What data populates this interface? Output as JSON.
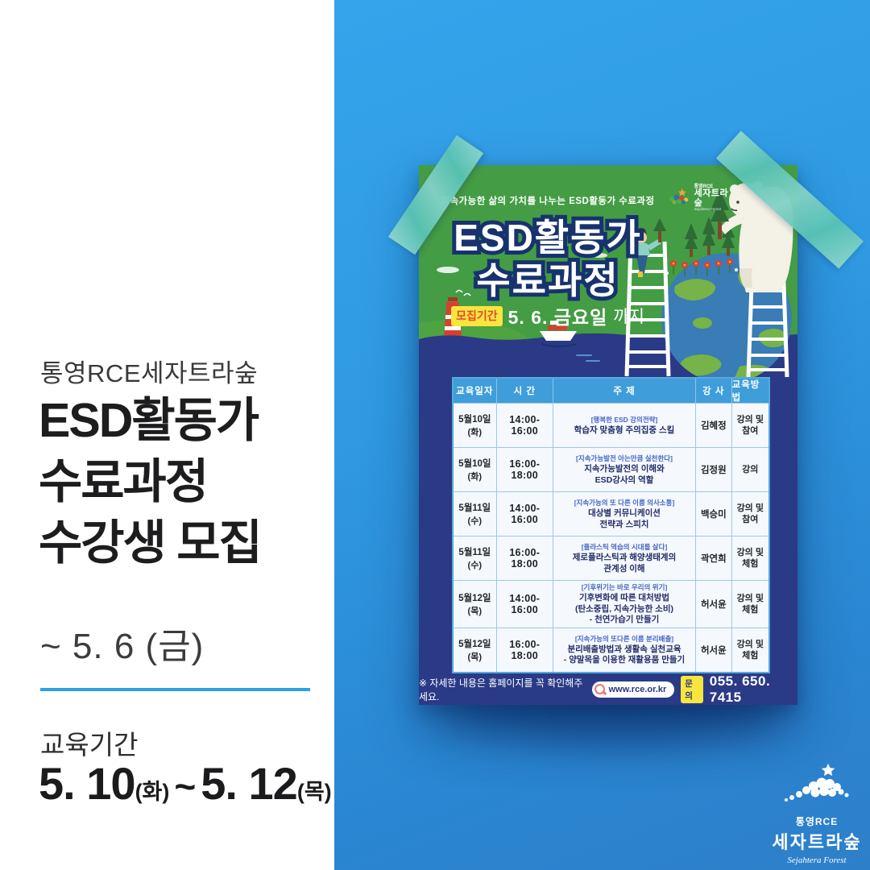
{
  "left_panel": {
    "org": "통영RCE세자트라숲",
    "title_lines": [
      "ESD활동가",
      "수료과정",
      "수강생 모집"
    ],
    "deadline": "~ 5. 6 (금)",
    "period_label": "교육기간",
    "period": {
      "start": "5. 10",
      "start_day": "(화)",
      "tilde": "~",
      "end": "5. 12",
      "end_day": "(목)"
    }
  },
  "poster": {
    "mini_logo": {
      "top": "통영RCE",
      "name": "세자트라숲",
      "sub": "Sejahtera Forest"
    },
    "subtitle": "지속가능한 삶의 가치를 나누는 ESD활동가 수료과정",
    "title_line1": "ESD활동가",
    "title_line2": "수료과정",
    "recruit_badge": "모집기간",
    "recruit_period": "5. 6. 금요일",
    "recruit_suffix": "까지",
    "table": {
      "headers": [
        "교육일자",
        "시 간",
        "주 제",
        "강 사",
        "교육방법"
      ],
      "rows": [
        {
          "date": "5월10일",
          "day": "(화)",
          "time": "14:00-16:00",
          "tag": "[행복한 ESD 강의전략]",
          "topic": [
            "학습자 맞춤형 주의집중 스킬"
          ],
          "instructor": "김혜정",
          "method": "강의 및 참여"
        },
        {
          "date": "5월10일",
          "day": "(화)",
          "time": "16:00-18:00",
          "tag": "[지속가능발전 아는만큼 실천한다]",
          "topic": [
            "지속가능발전의 이해와",
            "ESD강사의 역할"
          ],
          "instructor": "김정원",
          "method": "강의"
        },
        {
          "date": "5월11일",
          "day": "(수)",
          "time": "14:00-16:00",
          "tag": "[지속가능의 또 다른 이름 의사소통]",
          "topic": [
            "대상별 커뮤니케이션",
            "전략과 스피치"
          ],
          "instructor": "백승미",
          "method": "강의 및 참여"
        },
        {
          "date": "5월11일",
          "day": "(수)",
          "time": "16:00-18:00",
          "tag": "[플라스틱 역습의 시대를 살다]",
          "topic": [
            "제로플라스틱과 해양생태계의",
            "관계성 이해"
          ],
          "instructor": "곽연희",
          "method": "강의 및 체험"
        },
        {
          "date": "5월12일",
          "day": "(목)",
          "time": "14:00-16:00",
          "tag": "[기후위기는 바로 우리의 위기]",
          "topic": [
            "기후변화에 따른 대처방법",
            "(탄소중립, 지속가능한 소비)",
            "- 천연가습기 만들기"
          ],
          "instructor": "허서윤",
          "method": "강의 및 체험"
        },
        {
          "date": "5월12일",
          "day": "(목)",
          "time": "16:00-18:00",
          "tag": "[지속가능의 또다른 이름 분리배출]",
          "topic": [
            "분리배출방법과 생활속 실천교육",
            "- 양말목을 이용한 재활용품 만들기"
          ],
          "instructor": "허서윤",
          "method": "강의 및 체험"
        }
      ]
    },
    "footer": {
      "notice": "※ 자세한 내용은 홈페이지를 꼭 확인해주세요.",
      "website": "www.rce.or.kr",
      "contact_badge": "문의",
      "phone": "055. 650. 7415"
    }
  },
  "brand_logo": {
    "top": "통영RCE",
    "name": "세자트라숲",
    "sub": "Sejahtera Forest"
  },
  "colors": {
    "background_blue": "#2f9ae2",
    "poster_green": "#449c45",
    "poster_navy": "#2b3a86",
    "table_header_blue": "#3f9eda",
    "badge_yellow": "#f8e53e",
    "badge_red_text": "#e04a2f",
    "tape_teal": "#59c3b4",
    "divider_blue": "#29a3e6",
    "topic_navy": "#212c68",
    "tag_blue": "#4566c8"
  }
}
